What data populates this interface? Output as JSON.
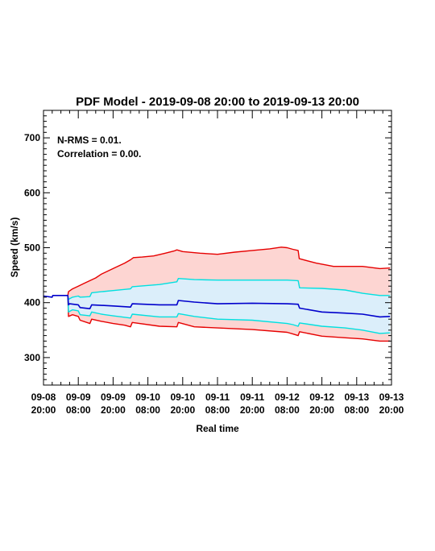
{
  "chart_data": {
    "type": "line",
    "title": "PDF Model - 2019-09-08 20:00 to 2019-09-13 20:00",
    "xlabel": "Real time",
    "ylabel": "Speed (km/s)",
    "annotations": [
      "N-RMS = 0.01.",
      "Correlation = 0.00."
    ],
    "xlim": [
      0,
      120
    ],
    "ylim": [
      250,
      750
    ],
    "yticks": [
      300,
      400,
      500,
      600,
      700
    ],
    "xticks": [
      {
        "hour": 0,
        "line1": "09-08",
        "line2": "20:00"
      },
      {
        "hour": 12,
        "line1": "09-09",
        "line2": "08:00"
      },
      {
        "hour": 24,
        "line1": "09-09",
        "line2": "20:00"
      },
      {
        "hour": 36,
        "line1": "09-10",
        "line2": "08:00"
      },
      {
        "hour": 48,
        "line1": "09-10",
        "line2": "20:00"
      },
      {
        "hour": 60,
        "line1": "09-11",
        "line2": "08:00"
      },
      {
        "hour": 72,
        "line1": "09-11",
        "line2": "20:00"
      },
      {
        "hour": 84,
        "line1": "09-12",
        "line2": "08:00"
      },
      {
        "hour": 96,
        "line1": "09-12",
        "line2": "20:00"
      },
      {
        "hour": 108,
        "line1": "09-13",
        "line2": "08:00"
      },
      {
        "hour": 120,
        "line1": "09-13",
        "line2": "20:00"
      }
    ],
    "series": [
      {
        "role": "upper-bound",
        "color": "#e60000",
        "x": [
          8.4,
          8.6,
          10,
          12,
          14,
          16,
          18,
          20,
          24,
          28,
          30,
          31,
          34,
          38,
          42,
          45,
          46,
          48,
          54,
          60,
          66,
          72,
          78,
          82,
          84,
          86,
          87.8,
          88.2,
          94,
          100,
          104,
          110,
          116,
          119.5
        ],
        "y": [
          413,
          420,
          425,
          430,
          435,
          440,
          445,
          452,
          462,
          472,
          478,
          482,
          483,
          485,
          490,
          494,
          496,
          493,
          490,
          488,
          492,
          495,
          498,
          501,
          500,
          497,
          495,
          480,
          472,
          466,
          466,
          466,
          462,
          463
        ]
      },
      {
        "role": "lower-bound",
        "color": "#e60000",
        "x": [
          8.4,
          8.6,
          10,
          12,
          12.6,
          16,
          16.6,
          20,
          24,
          28,
          30,
          30.6,
          40,
          46,
          46.5,
          52,
          60,
          72,
          84,
          86,
          87.8,
          88.3,
          96,
          104,
          110,
          116,
          119.5
        ],
        "y": [
          413,
          375,
          378,
          375,
          368,
          362,
          370,
          366,
          362,
          359,
          356,
          364,
          357,
          356,
          364,
          356,
          354,
          351,
          346,
          343,
          340,
          347,
          339,
          336,
          334,
          330,
          330
        ]
      },
      {
        "role": "upper-quartile",
        "color": "#00e0e0",
        "x": [
          8.4,
          8.6,
          10,
          12,
          12.6,
          16,
          16.6,
          20,
          24,
          30,
          30.6,
          40,
          46,
          46.5,
          52,
          60,
          72,
          84,
          87.8,
          88.3,
          96,
          104,
          110,
          116,
          119.5
        ],
        "y": [
          413,
          406,
          410,
          412,
          410,
          411,
          418,
          420,
          422,
          425,
          429,
          433,
          438,
          444,
          442,
          441,
          441,
          441,
          440,
          427,
          426,
          423,
          417,
          413,
          413
        ]
      },
      {
        "role": "lower-quartile",
        "color": "#00e0e0",
        "x": [
          8.4,
          8.6,
          10,
          12,
          12.6,
          16,
          16.6,
          20,
          24,
          30,
          30.6,
          40,
          46,
          46.5,
          52,
          60,
          72,
          84,
          86,
          87.8,
          88.3,
          96,
          104,
          110,
          116,
          119.5
        ],
        "y": [
          413,
          383,
          387,
          385,
          378,
          376,
          383,
          379,
          376,
          372,
          379,
          374,
          374,
          380,
          375,
          370,
          368,
          362,
          360,
          357,
          363,
          357,
          354,
          350,
          344,
          345
        ]
      },
      {
        "role": "median",
        "color": "#0000cc",
        "x": [
          0,
          3,
          3.2,
          8.4,
          8.6,
          9,
          12,
          12.6,
          16,
          16.6,
          24,
          30,
          30.6,
          40,
          46,
          46.5,
          52,
          60,
          72,
          84,
          87.8,
          88.3,
          96,
          104,
          110,
          116,
          119.5
        ],
        "y": [
          412,
          410,
          413,
          413,
          396,
          398,
          396,
          391,
          389,
          396,
          394,
          392,
          398,
          396,
          396,
          404,
          401,
          398,
          399,
          398,
          397,
          390,
          383,
          381,
          379,
          374,
          375
        ]
      }
    ],
    "bands": [
      {
        "between": [
          "upper-quartile",
          "upper-bound"
        ],
        "color": "#fdd5d2"
      },
      {
        "between": [
          "lower-bound",
          "lower-quartile"
        ],
        "color": "#fdd5d2"
      },
      {
        "between": [
          "lower-quartile",
          "upper-quartile"
        ],
        "color": "#dbeefa"
      }
    ]
  }
}
